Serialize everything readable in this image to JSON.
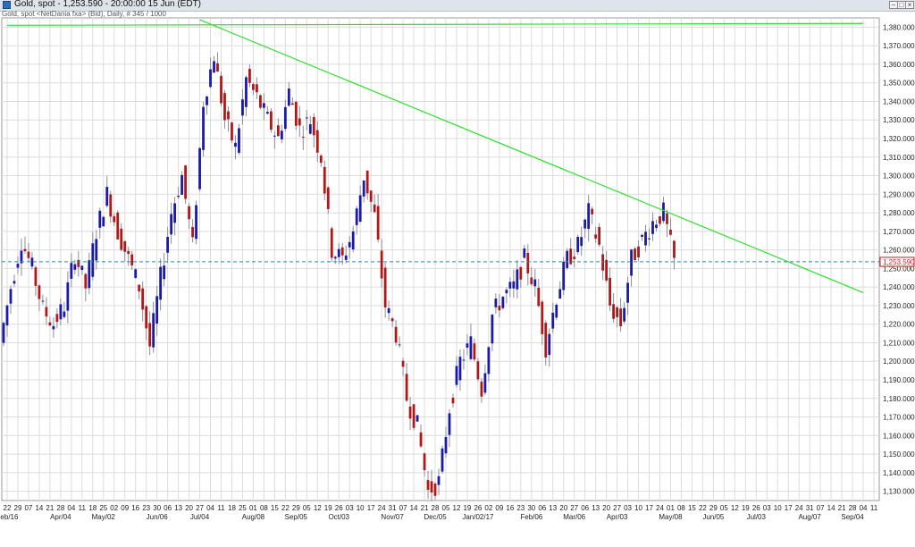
{
  "window": {
    "title": "Gold, spot - 1,253.590 - 20:00:00  15 Jun (EDT)",
    "subtitle": "Gold, spot <NetDania fxa> (Bid), Daily, # 345 / 1000",
    "controls": [
      "minimize",
      "maximize",
      "close"
    ]
  },
  "colors": {
    "up_candle": "#1a1aa8",
    "down_candle": "#b01818",
    "wick": "#8c8c9c",
    "trendline": "#2ee02e",
    "last_price_line": "#2e8ca8",
    "last_price_box": "#d01818",
    "grid": "#dcdcdc"
  },
  "chart_data": {
    "type": "candlestick",
    "instrument": "Gold, spot",
    "last_price": 1253.59,
    "last_price_label": "1,253.590",
    "ylim": [
      1125,
      1385
    ],
    "y_ticks": [
      1130,
      1140,
      1150,
      1160,
      1170,
      1180,
      1190,
      1200,
      1210,
      1220,
      1230,
      1240,
      1250,
      1260,
      1270,
      1280,
      1290,
      1300,
      1310,
      1320,
      1330,
      1340,
      1350,
      1360,
      1370,
      1380
    ],
    "y_tick_labels": [
      "1,130.000",
      "1,140.000",
      "1,150.000",
      "1,160.000",
      "1,170.000",
      "1,180.000",
      "1,190.000",
      "1,200.000",
      "1,210.000",
      "1,220.000",
      "1,230.000",
      "1,240.000",
      "1,250.000",
      "1,260.000",
      "1,270.000",
      "1,280.000",
      "1,290.000",
      "1,300.000",
      "1,310.000",
      "1,320.000",
      "1,330.000",
      "1,340.000",
      "1,350.000",
      "1,360.000",
      "1,370.000",
      "1,380.000"
    ],
    "x_day_labels": [
      "22",
      "29",
      "07",
      "14",
      "21",
      "28",
      "04",
      "11",
      "18",
      "25",
      "02",
      "09",
      "16",
      "23",
      "30",
      "06",
      "13",
      "20",
      "27",
      "04",
      "11",
      "18",
      "25",
      "01",
      "08",
      "15",
      "22",
      "29",
      "05",
      "12",
      "19",
      "26",
      "03",
      "10",
      "17",
      "24",
      "31",
      "07",
      "14",
      "21",
      "28",
      "05",
      "12",
      "19",
      "26",
      "02",
      "09",
      "16",
      "23",
      "30",
      "06",
      "13",
      "20",
      "27",
      "06",
      "13",
      "20",
      "27",
      "03",
      "10",
      "17",
      "24",
      "01",
      "08",
      "15",
      "22",
      "29",
      "05",
      "12",
      "19",
      "26",
      "03",
      "10",
      "17",
      "24",
      "31",
      "07",
      "14",
      "21",
      "28",
      "04",
      "11"
    ],
    "x_month_labels": [
      "Feb/16",
      "Apr/04",
      "May/02",
      "Jun/06",
      "Jul/04",
      "Aug/08",
      "Sep/05",
      "Oct/03",
      "Nov/07",
      "Dec/05",
      "Jan/02/17",
      "Feb/06",
      "Mar/06",
      "Apr/03",
      "May/08",
      "Jun/05",
      "Jul/03",
      "Aug/07",
      "Sep/04"
    ],
    "x_month_label_slots": [
      0,
      5,
      9,
      14,
      18,
      23,
      27,
      31,
      36,
      40,
      44,
      49,
      53,
      57,
      62,
      66,
      70,
      75,
      79
    ],
    "weekly_close": [
      1210,
      1240,
      1265,
      1250,
      1228,
      1220,
      1230,
      1258,
      1240,
      1270,
      1290,
      1270,
      1255,
      1240,
      1208,
      1245,
      1280,
      1300,
      1262,
      1340,
      1365,
      1330,
      1315,
      1352,
      1342,
      1330,
      1320,
      1345,
      1325,
      1330,
      1310,
      1260,
      1255,
      1270,
      1300,
      1278,
      1230,
      1215,
      1180,
      1165,
      1130,
      1135,
      1175,
      1200,
      1210,
      1185,
      1225,
      1235,
      1240,
      1255,
      1240,
      1208,
      1235,
      1255,
      1262,
      1280,
      1262,
      1230,
      1220,
      1255,
      1265,
      1275,
      1280,
      1253.59
    ],
    "weekly_close_start_slot": 0,
    "trendlines": [
      {
        "name": "resistance-line",
        "from": {
          "slot": 18,
          "price": 1384
        },
        "to": {
          "slot": 80,
          "price": 1237
        }
      },
      {
        "name": "high-line",
        "from": {
          "slot": 0,
          "price": 1381
        },
        "to": {
          "slot": 80,
          "price": 1382
        }
      }
    ],
    "grid": true
  }
}
